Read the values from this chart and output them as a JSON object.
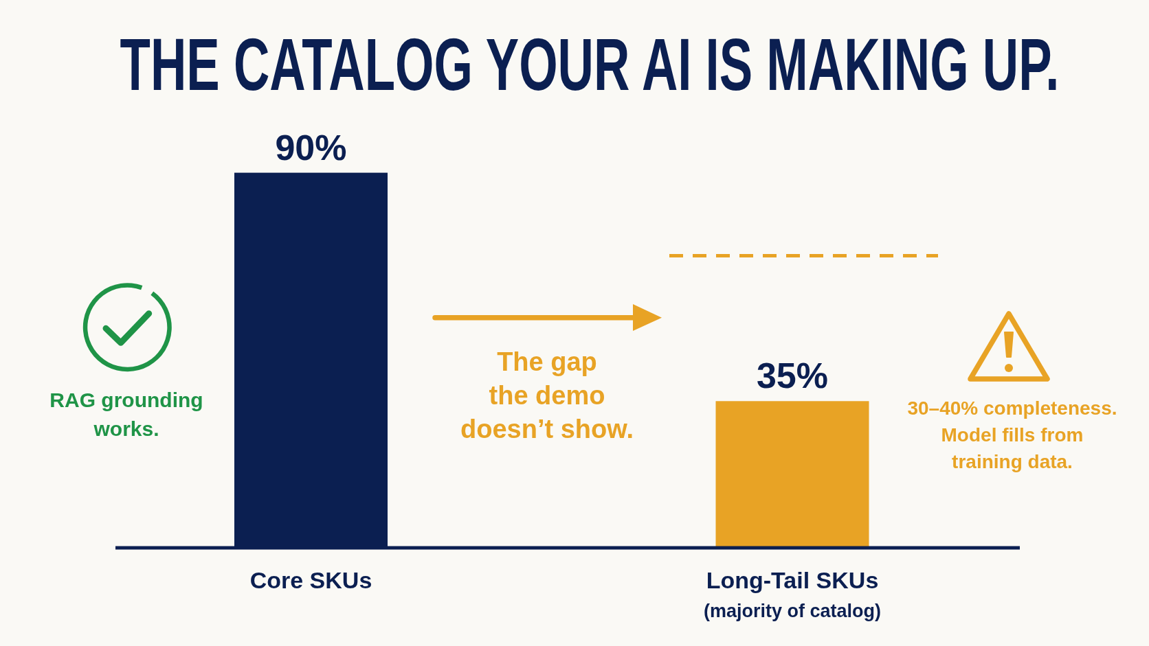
{
  "chart_data": {
    "type": "bar",
    "title": "THE CATALOG YOUR AI IS MAKING UP.",
    "categories": [
      "Core SKUs",
      "Long-Tail SKUs"
    ],
    "values": [
      90,
      35
    ],
    "colors": [
      "#0b1f51",
      "#e8a325"
    ],
    "tick_labels": "x",
    "value_labels": [
      "90%",
      "35%"
    ],
    "ref_lines": [
      {
        "axis": "y",
        "value": 70,
        "color": "#e8a325",
        "line_style": "dashed"
      }
    ],
    "annotations": [
      "RAG grounding\nworks.",
      "The gap\nthe demo\ndoesn’t show.",
      "30–40% completeness.\nModel fills from\ntraining data.",
      "(majority of catalog)"
    ]
  }
}
